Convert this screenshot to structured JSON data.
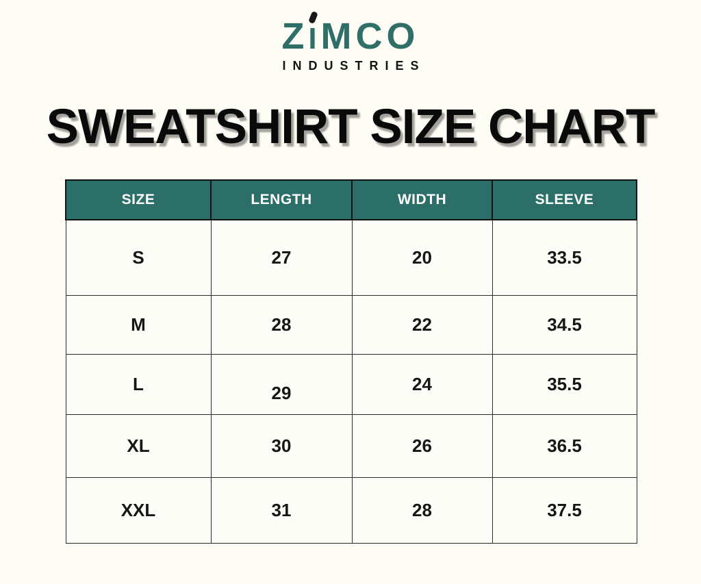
{
  "brand": {
    "name": "ZIMCO",
    "logo_parts": [
      "Z",
      "I",
      "MCO"
    ],
    "subtitle": "INDUSTRIES",
    "logo_color": "#2f6f67",
    "accent_color": "#171717"
  },
  "page_title": "SWEATSHIRT SIZE CHART",
  "colors": {
    "background": "#fdfcf5",
    "table_header_bg": "#2c6f68",
    "table_header_text": "#ffffff",
    "table_border": "#1a1a1a",
    "body_text": "#161616",
    "title_text": "#0a0a0a",
    "title_shadow": "#a3a09b"
  },
  "chart_data": {
    "type": "table",
    "title": "SWEATSHIRT SIZE CHART",
    "columns": [
      "SIZE",
      "LENGTH",
      "WIDTH",
      "SLEEVE"
    ],
    "rows": [
      [
        "S",
        "27",
        "20",
        "33.5"
      ],
      [
        "M",
        "28",
        "22",
        "34.5"
      ],
      [
        "L",
        "29",
        "24",
        "35.5"
      ],
      [
        "XL",
        "30",
        "26",
        "36.5"
      ],
      [
        "XXL",
        "31",
        "28",
        "37.5"
      ]
    ]
  }
}
